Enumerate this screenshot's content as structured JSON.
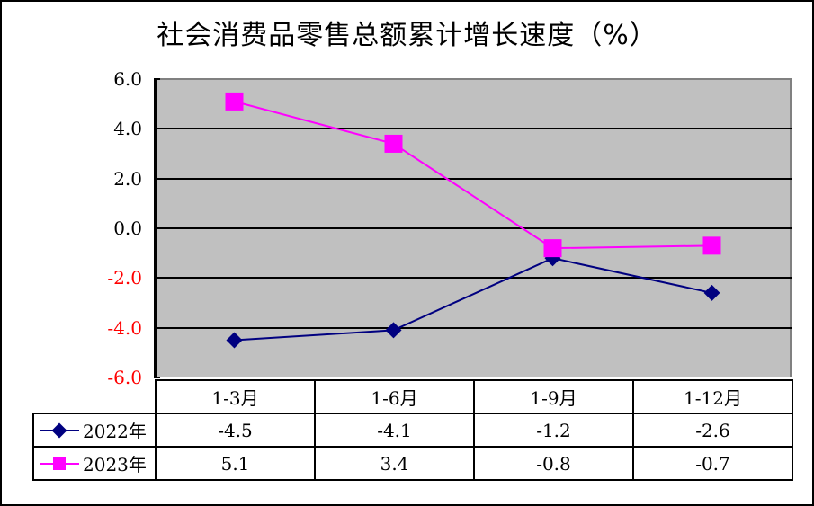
{
  "title": "社会消费品零售总额累计增长速度（%）",
  "y_axis": {
    "ticks": [
      {
        "label": "6.0",
        "value": 6,
        "color": "#000000"
      },
      {
        "label": "4.0",
        "value": 4,
        "color": "#000000"
      },
      {
        "label": "2.0",
        "value": 2,
        "color": "#000000"
      },
      {
        "label": "0.0",
        "value": 0,
        "color": "#000000"
      },
      {
        "label": "-2.0",
        "value": -2,
        "color": "#ff0000"
      },
      {
        "label": "-4.0",
        "value": -4,
        "color": "#ff0000"
      },
      {
        "label": "-6.0",
        "value": -6,
        "color": "#ff0000"
      }
    ]
  },
  "table": {
    "headers": [
      "1-3月",
      "1-6月",
      "1-9月",
      "1-12月"
    ],
    "rows": [
      {
        "legend": "2022年",
        "cells": [
          "-4.5",
          "-4.1",
          "-1.2",
          "-2.6"
        ]
      },
      {
        "legend": "2023年",
        "cells": [
          "5.1",
          "3.4",
          "-0.8",
          "-0.7"
        ]
      }
    ]
  },
  "colors": {
    "plot_background": "#c0c0c0",
    "series_2022": "#000080",
    "series_2023": "#ff00ff",
    "negative_tick": "#ff0000"
  },
  "chart_data": {
    "type": "line",
    "title": "社会消费品零售总额累计增长速度（%）",
    "categories": [
      "1-3月",
      "1-6月",
      "1-9月",
      "1-12月"
    ],
    "series": [
      {
        "name": "2022年",
        "values": [
          -4.5,
          -4.1,
          -1.2,
          -2.6
        ],
        "color": "#000080",
        "marker": "diamond"
      },
      {
        "name": "2023年",
        "values": [
          5.1,
          3.4,
          -0.8,
          -0.7
        ],
        "color": "#ff00ff",
        "marker": "square"
      }
    ],
    "xlabel": "",
    "ylabel": "",
    "ylim": [
      -6,
      6
    ],
    "yticks": [
      6,
      4,
      2,
      0,
      -2,
      -4,
      -6
    ],
    "grid": true,
    "legend_position": "data-table"
  }
}
